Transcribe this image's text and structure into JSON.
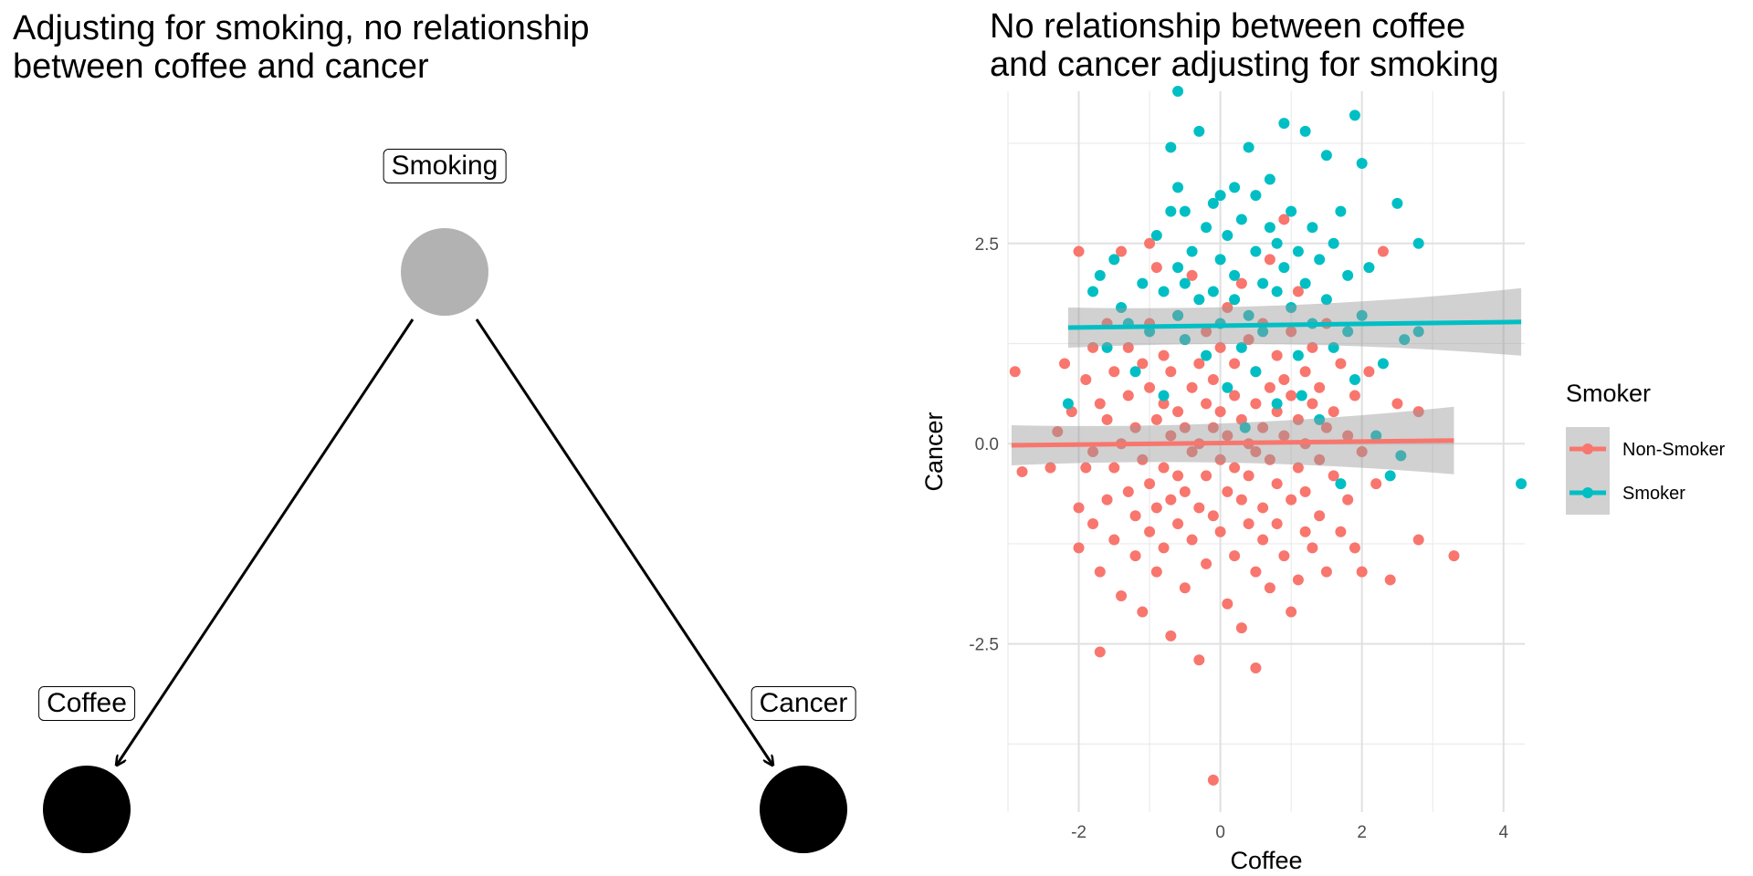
{
  "dag": {
    "title": "Adjusting for smoking, no relationship\nbetween coffee and cancer",
    "nodes": [
      {
        "id": "smoking",
        "label": "Smoking",
        "color": "#b2b2b2"
      },
      {
        "id": "coffee",
        "label": "Coffee",
        "color": "#000000"
      },
      {
        "id": "cancer",
        "label": "Cancer",
        "color": "#000000"
      }
    ],
    "edges": [
      {
        "from": "smoking",
        "to": "coffee"
      },
      {
        "from": "smoking",
        "to": "cancer"
      }
    ]
  },
  "chart_data": {
    "type": "scatter",
    "title": "No relationship between coffee\nand cancer adjusting for smoking",
    "xlabel": "Coffee",
    "ylabel": "Cancer",
    "xlim": [
      -3.0,
      4.3
    ],
    "ylim": [
      -4.6,
      4.4
    ],
    "x_ticks": [
      -2,
      0,
      2,
      4
    ],
    "x_tick_labels": [
      "-2",
      "0",
      "2",
      "4"
    ],
    "y_ticks": [
      -2.5,
      0.0,
      2.5
    ],
    "y_tick_labels": [
      "-2.5",
      "0.0",
      "2.5"
    ],
    "grid": true,
    "legend": {
      "title": "Smoker",
      "position": "right"
    },
    "series": [
      {
        "name": "Non-Smoker",
        "color": "#F8766D",
        "fit_line": {
          "x": [
            -2.95,
            3.3
          ],
          "y": [
            -0.02,
            0.04
          ]
        },
        "points": [
          [
            -2.9,
            0.9
          ],
          [
            -2.8,
            -0.35
          ],
          [
            -2.3,
            0.15
          ],
          [
            -2.2,
            1.0
          ],
          [
            -2.1,
            0.4
          ],
          [
            -2.0,
            -0.8
          ],
          [
            -2.0,
            -1.3
          ],
          [
            -2.0,
            2.4
          ],
          [
            -1.9,
            -0.3
          ],
          [
            -1.9,
            0.8
          ],
          [
            -1.8,
            -1.0
          ],
          [
            -1.8,
            1.2
          ],
          [
            -1.8,
            -0.1
          ],
          [
            -1.7,
            -1.6
          ],
          [
            -1.7,
            0.5
          ],
          [
            -1.7,
            -2.6
          ],
          [
            -1.6,
            -0.7
          ],
          [
            -1.6,
            1.5
          ],
          [
            -1.6,
            0.3
          ],
          [
            -1.5,
            -1.2
          ],
          [
            -1.5,
            0.9
          ],
          [
            -1.5,
            -0.3
          ],
          [
            -1.4,
            0.0
          ],
          [
            -1.4,
            2.4
          ],
          [
            -1.4,
            -1.9
          ],
          [
            -1.3,
            0.6
          ],
          [
            -1.3,
            -0.6
          ],
          [
            -1.3,
            1.2
          ],
          [
            -1.2,
            -1.4
          ],
          [
            -1.2,
            0.2
          ],
          [
            -1.2,
            -0.9
          ],
          [
            -1.1,
            1.0
          ],
          [
            -1.1,
            -0.2
          ],
          [
            -1.1,
            -2.1
          ],
          [
            -1.0,
            0.7
          ],
          [
            -1.0,
            -0.5
          ],
          [
            -1.0,
            1.5
          ],
          [
            -1.0,
            -1.1
          ],
          [
            -0.9,
            0.3
          ],
          [
            -0.9,
            -0.8
          ],
          [
            -0.9,
            2.2
          ],
          [
            -0.9,
            -1.6
          ],
          [
            -0.8,
            0.5
          ],
          [
            -0.8,
            -0.3
          ],
          [
            -0.8,
            1.1
          ],
          [
            -0.8,
            -1.3
          ],
          [
            -0.7,
            0.1
          ],
          [
            -0.7,
            0.9
          ],
          [
            -0.7,
            -0.7
          ],
          [
            -0.7,
            -2.4
          ],
          [
            -0.6,
            0.4
          ],
          [
            -0.6,
            -0.4
          ],
          [
            -0.6,
            1.6
          ],
          [
            -0.6,
            -1.0
          ],
          [
            -0.5,
            0.2
          ],
          [
            -0.5,
            -0.6
          ],
          [
            -0.5,
            1.3
          ],
          [
            -0.5,
            -1.8
          ],
          [
            -0.4,
            0.7
          ],
          [
            -0.4,
            -0.1
          ],
          [
            -0.4,
            -1.2
          ],
          [
            -0.4,
            2.1
          ],
          [
            -0.3,
            0.0
          ],
          [
            -0.3,
            -0.8
          ],
          [
            -0.3,
            1.0
          ],
          [
            -0.3,
            -2.7
          ],
          [
            -0.2,
            0.5
          ],
          [
            -0.2,
            -0.4
          ],
          [
            -0.2,
            1.4
          ],
          [
            -0.2,
            -1.5
          ],
          [
            -0.1,
            0.2
          ],
          [
            -0.1,
            -0.9
          ],
          [
            -0.1,
            0.8
          ],
          [
            -0.1,
            -4.2
          ],
          [
            0.0,
            0.4
          ],
          [
            0.0,
            -0.2
          ],
          [
            0.0,
            1.2
          ],
          [
            0.0,
            -1.1
          ],
          [
            0.1,
            0.1
          ],
          [
            0.1,
            -0.6
          ],
          [
            0.1,
            1.7
          ],
          [
            0.1,
            -2.0
          ],
          [
            0.2,
            0.6
          ],
          [
            0.2,
            -0.3
          ],
          [
            0.2,
            1.0
          ],
          [
            0.2,
            -1.4
          ],
          [
            0.3,
            0.3
          ],
          [
            0.3,
            -0.7
          ],
          [
            0.3,
            2.0
          ],
          [
            0.3,
            -2.3
          ],
          [
            0.4,
            0.0
          ],
          [
            0.4,
            -1.0
          ],
          [
            0.4,
            1.3
          ],
          [
            0.4,
            -0.4
          ],
          [
            0.5,
            0.5
          ],
          [
            0.5,
            -1.6
          ],
          [
            0.5,
            0.9
          ],
          [
            0.5,
            -2.8
          ],
          [
            0.6,
            0.2
          ],
          [
            0.6,
            -0.8
          ],
          [
            0.6,
            1.5
          ],
          [
            0.6,
            -1.2
          ],
          [
            0.7,
            0.7
          ],
          [
            0.7,
            -0.2
          ],
          [
            0.7,
            2.3
          ],
          [
            0.7,
            -1.8
          ],
          [
            0.8,
            0.4
          ],
          [
            0.8,
            -0.5
          ],
          [
            0.8,
            1.1
          ],
          [
            0.8,
            -1.0
          ],
          [
            0.9,
            0.1
          ],
          [
            0.9,
            -1.4
          ],
          [
            0.9,
            2.8
          ],
          [
            0.9,
            0.8
          ],
          [
            1.0,
            0.6
          ],
          [
            1.0,
            -0.7
          ],
          [
            1.0,
            1.4
          ],
          [
            1.0,
            -2.1
          ],
          [
            1.1,
            0.3
          ],
          [
            1.1,
            -0.3
          ],
          [
            1.1,
            -1.7
          ],
          [
            1.1,
            1.9
          ],
          [
            1.2,
            0.0
          ],
          [
            1.2,
            -1.1
          ],
          [
            1.2,
            0.9
          ],
          [
            1.2,
            -0.6
          ],
          [
            1.3,
            0.5
          ],
          [
            1.3,
            -1.3
          ],
          [
            1.3,
            1.2
          ],
          [
            1.4,
            -0.2
          ],
          [
            1.4,
            0.7
          ],
          [
            1.4,
            -0.9
          ],
          [
            1.5,
            0.2
          ],
          [
            1.5,
            -1.6
          ],
          [
            1.5,
            1.5
          ],
          [
            1.6,
            -0.4
          ],
          [
            1.6,
            0.4
          ],
          [
            1.7,
            -1.1
          ],
          [
            1.7,
            1.0
          ],
          [
            1.8,
            0.1
          ],
          [
            1.8,
            -0.7
          ],
          [
            1.9,
            0.6
          ],
          [
            1.9,
            -1.3
          ],
          [
            2.0,
            -0.1
          ],
          [
            2.0,
            -1.6
          ],
          [
            2.1,
            0.9
          ],
          [
            2.2,
            -0.5
          ],
          [
            2.3,
            2.4
          ],
          [
            2.4,
            -1.7
          ],
          [
            2.5,
            0.5
          ],
          [
            2.8,
            -1.2
          ],
          [
            2.8,
            0.4
          ],
          [
            3.3,
            -1.4
          ],
          [
            -2.4,
            -0.3
          ],
          [
            -1.0,
            2.5
          ],
          [
            0.5,
            -0.1
          ]
        ]
      },
      {
        "name": "Smoker",
        "color": "#00BFC4",
        "fit_line": {
          "x": [
            -2.15,
            4.25
          ],
          "y": [
            1.45,
            1.52
          ]
        },
        "points": [
          [
            -2.15,
            0.5
          ],
          [
            -1.8,
            1.9
          ],
          [
            -1.7,
            2.1
          ],
          [
            -1.6,
            1.2
          ],
          [
            -1.5,
            2.3
          ],
          [
            -1.4,
            1.7
          ],
          [
            -1.2,
            0.9
          ],
          [
            -1.1,
            2.0
          ],
          [
            -1.0,
            1.4
          ],
          [
            -0.9,
            2.6
          ],
          [
            -0.8,
            1.9
          ],
          [
            -0.8,
            0.6
          ],
          [
            -0.7,
            2.9
          ],
          [
            -0.7,
            3.7
          ],
          [
            -0.6,
            1.6
          ],
          [
            -0.6,
            2.2
          ],
          [
            -0.6,
            3.2
          ],
          [
            -0.6,
            4.4
          ],
          [
            -0.5,
            2.0
          ],
          [
            -0.5,
            1.3
          ],
          [
            -0.5,
            2.9
          ],
          [
            -0.4,
            2.4
          ],
          [
            -0.3,
            1.8
          ],
          [
            -0.3,
            3.9
          ],
          [
            -0.2,
            2.7
          ],
          [
            -0.2,
            1.1
          ],
          [
            -0.1,
            3.0
          ],
          [
            -0.1,
            1.9
          ],
          [
            0.0,
            2.3
          ],
          [
            0.0,
            1.5
          ],
          [
            0.0,
            3.1
          ],
          [
            0.1,
            0.7
          ],
          [
            0.1,
            2.6
          ],
          [
            0.2,
            1.8
          ],
          [
            0.2,
            3.2
          ],
          [
            0.2,
            2.1
          ],
          [
            0.3,
            1.2
          ],
          [
            0.3,
            2.8
          ],
          [
            0.4,
            3.7
          ],
          [
            0.4,
            1.6
          ],
          [
            0.5,
            2.4
          ],
          [
            0.5,
            0.9
          ],
          [
            0.5,
            3.1
          ],
          [
            0.6,
            2.0
          ],
          [
            0.6,
            1.4
          ],
          [
            0.7,
            2.7
          ],
          [
            0.7,
            3.3
          ],
          [
            0.8,
            1.9
          ],
          [
            0.8,
            2.5
          ],
          [
            0.8,
            0.5
          ],
          [
            0.9,
            4.0
          ],
          [
            0.9,
            2.2
          ],
          [
            1.0,
            1.7
          ],
          [
            1.0,
            2.9
          ],
          [
            1.1,
            2.4
          ],
          [
            1.1,
            1.1
          ],
          [
            1.2,
            3.9
          ],
          [
            1.2,
            2.0
          ],
          [
            1.3,
            1.5
          ],
          [
            1.3,
            2.7
          ],
          [
            1.4,
            2.3
          ],
          [
            1.4,
            0.3
          ],
          [
            1.5,
            3.6
          ],
          [
            1.5,
            1.8
          ],
          [
            1.6,
            2.5
          ],
          [
            1.6,
            1.2
          ],
          [
            1.7,
            2.9
          ],
          [
            1.7,
            -0.5
          ],
          [
            1.8,
            2.1
          ],
          [
            1.8,
            1.4
          ],
          [
            1.9,
            4.1
          ],
          [
            1.9,
            0.8
          ],
          [
            2.0,
            3.5
          ],
          [
            2.0,
            1.6
          ],
          [
            2.1,
            2.2
          ],
          [
            2.2,
            0.1
          ],
          [
            2.3,
            1.0
          ],
          [
            2.4,
            -0.4
          ],
          [
            2.5,
            3.0
          ],
          [
            2.6,
            1.3
          ],
          [
            2.8,
            2.5
          ],
          [
            2.8,
            1.4
          ],
          [
            4.25,
            -0.5
          ],
          [
            -1.3,
            1.5
          ],
          [
            0.35,
            0.2
          ],
          [
            1.15,
            0.6
          ],
          [
            2.55,
            -0.15
          ]
        ]
      }
    ]
  }
}
